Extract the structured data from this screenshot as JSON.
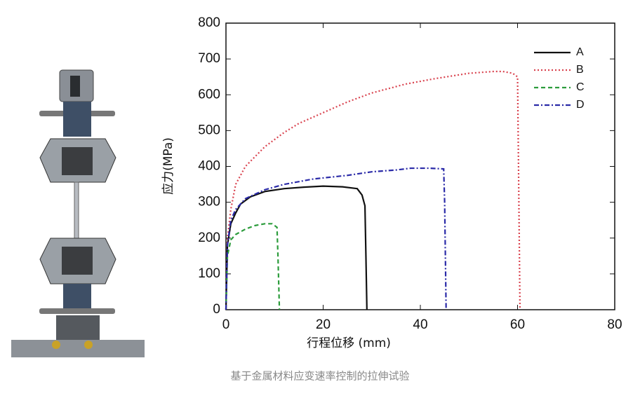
{
  "chart_data": {
    "type": "line",
    "xlabel": "行程位移 (mm)",
    "ylabel": "应力(MPa)",
    "xlim": [
      0,
      80
    ],
    "xticks": [
      0,
      20,
      40,
      60,
      80
    ],
    "ylim": [
      0,
      800
    ],
    "yticks": [
      0,
      100,
      200,
      300,
      400,
      500,
      600,
      700,
      800
    ],
    "grid": false,
    "legend": "upper right",
    "series": [
      {
        "name": "A",
        "color": "#111111",
        "style": "solid",
        "x": [
          0,
          0.3,
          1,
          2,
          3,
          5,
          8,
          12,
          16,
          20,
          24,
          27,
          28,
          28.6,
          28.8,
          29
        ],
        "values": [
          0,
          180,
          240,
          270,
          295,
          315,
          330,
          338,
          342,
          345,
          343,
          338,
          320,
          290,
          150,
          0
        ]
      },
      {
        "name": "B",
        "color": "#d9434f",
        "style": "dotted",
        "x": [
          0,
          0.3,
          1,
          2,
          4,
          8,
          12,
          15,
          20,
          25,
          30,
          37,
          43,
          50,
          55,
          57,
          59,
          60,
          60.2,
          60.5
        ],
        "values": [
          0,
          200,
          280,
          350,
          400,
          455,
          495,
          520,
          550,
          580,
          605,
          630,
          645,
          660,
          665,
          665,
          660,
          650,
          400,
          0
        ]
      },
      {
        "name": "C",
        "color": "#2c9c3c",
        "style": "dashed",
        "x": [
          0,
          0.3,
          1,
          2,
          4,
          6,
          8,
          9.5,
          10.5,
          10.7,
          11
        ],
        "values": [
          0,
          150,
          195,
          210,
          225,
          235,
          240,
          240,
          230,
          150,
          0
        ]
      },
      {
        "name": "D",
        "color": "#2a2aa8",
        "style": "dashdot",
        "x": [
          0,
          0.3,
          1,
          2,
          4,
          8,
          12,
          18,
          25,
          30,
          35,
          38,
          42,
          44.8,
          45,
          45.3
        ],
        "values": [
          0,
          180,
          250,
          280,
          310,
          335,
          350,
          365,
          375,
          385,
          390,
          395,
          395,
          393,
          300,
          0
        ]
      }
    ]
  },
  "caption": "基于金属材料应变速率控制的拉伸试验"
}
